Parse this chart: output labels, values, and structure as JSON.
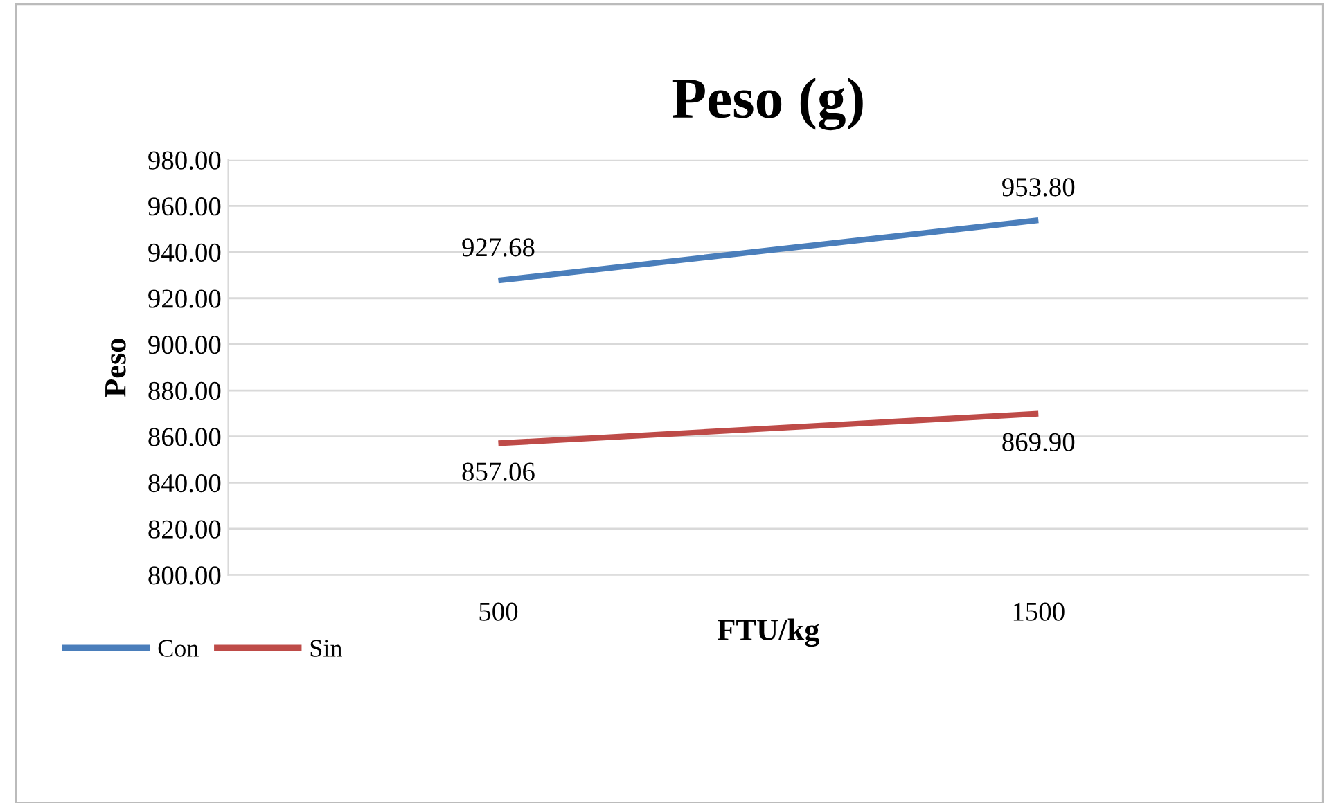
{
  "chart_data": {
    "type": "line",
    "title": "Peso (g)",
    "xlabel": "FTU/kg",
    "ylabel": "Peso",
    "categories": [
      "500",
      "1500"
    ],
    "series": [
      {
        "name": "Con",
        "color": "#4a7ebb",
        "values": [
          927.68,
          953.8
        ],
        "value_labels": [
          "927.68",
          "953.80"
        ]
      },
      {
        "name": "Sin",
        "color": "#be4b48",
        "values": [
          857.06,
          869.9
        ],
        "value_labels": [
          "857.06",
          "869.90"
        ]
      }
    ],
    "ylim": [
      800,
      980
    ],
    "yticks": [
      {
        "value": 800,
        "label": "800.00"
      },
      {
        "value": 820,
        "label": "820.00"
      },
      {
        "value": 840,
        "label": "840.00"
      },
      {
        "value": 860,
        "label": "860.00"
      },
      {
        "value": 880,
        "label": "880.00"
      },
      {
        "value": 900,
        "label": "900.00"
      },
      {
        "value": 920,
        "label": "920.00"
      },
      {
        "value": 940,
        "label": "940.00"
      },
      {
        "value": 960,
        "label": "960.00"
      },
      {
        "value": 980,
        "label": "980.00"
      }
    ],
    "grid": "y",
    "legend": "bottom left",
    "marker": "none",
    "line_style": "solid"
  }
}
